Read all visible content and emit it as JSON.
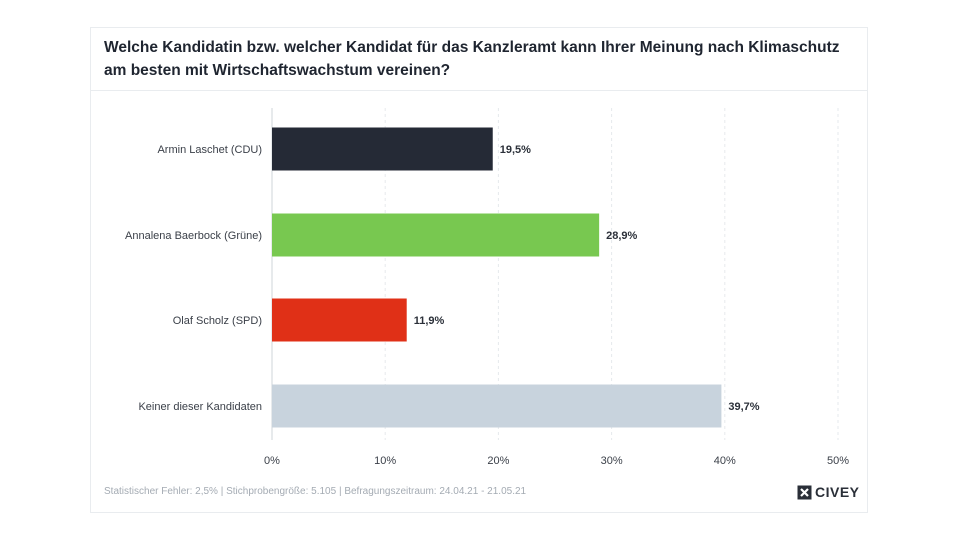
{
  "title": "Welche Kandidatin bzw. welcher Kandidat für das Kanzleramt kann Ihrer Meinung nach Klimaschutz am besten mit Wirtschaftswachstum vereinen?",
  "footer": "Statistischer Fehler: 2,5% | Stichprobengröße: 5.105 | Befragungszeitraum: 24.04.21 - 21.05.21",
  "brand": "CIVEY",
  "chart_data": {
    "type": "bar",
    "orientation": "horizontal",
    "categories": [
      "Armin Laschet (CDU)",
      "Annalena Baerbock (Grüne)",
      "Olaf Scholz (SPD)",
      "Keiner dieser Kandidaten"
    ],
    "values": [
      19.5,
      28.9,
      11.9,
      39.7
    ],
    "value_labels": [
      "19,5%",
      "28,9%",
      "11,9%",
      "39,7%"
    ],
    "colors": [
      "#252a36",
      "#78c850",
      "#e03017",
      "#c8d3dd"
    ],
    "xlim": [
      0,
      50
    ],
    "xticks": [
      0,
      10,
      20,
      30,
      40,
      50
    ],
    "xtick_labels": [
      "0%",
      "10%",
      "20%",
      "30%",
      "40%",
      "50%"
    ],
    "grid": true
  }
}
